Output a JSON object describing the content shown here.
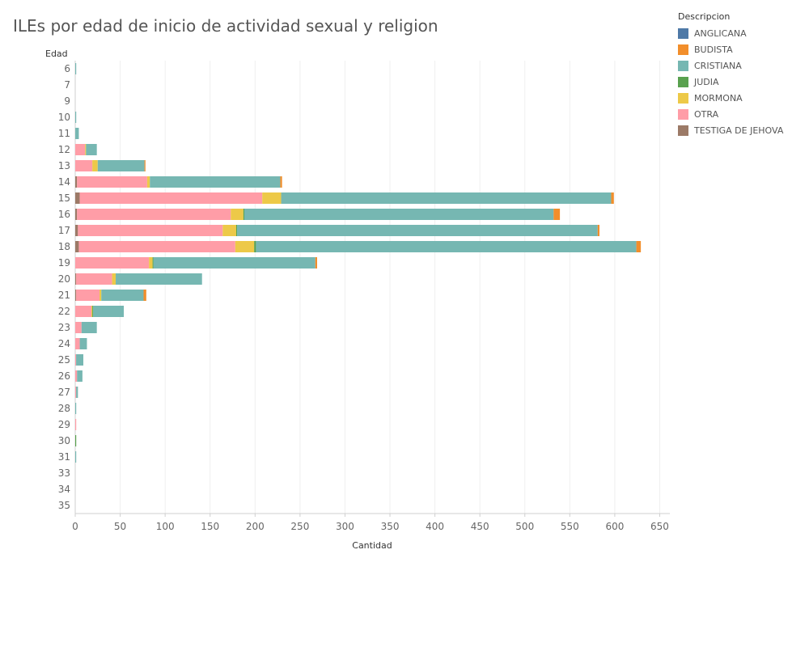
{
  "chart_data": {
    "type": "bar",
    "orientation": "horizontal",
    "stacked": true,
    "title": "ILEs por edad de inicio de actividad sexual y religion",
    "ylabel": "Edad",
    "xlabel": "Cantidad",
    "legend_title": "Descripcion",
    "legend_position": "top-right",
    "xlim": [
      0,
      660
    ],
    "x_ticks": [
      "0",
      "50",
      "100",
      "150",
      "200",
      "250",
      "300",
      "350",
      "400",
      "450",
      "500",
      "550",
      "600",
      "650"
    ],
    "grid": "vertical",
    "categories": [
      "6",
      "7",
      "9",
      "10",
      "11",
      "12",
      "13",
      "14",
      "15",
      "16",
      "17",
      "18",
      "19",
      "20",
      "21",
      "22",
      "23",
      "24",
      "25",
      "26",
      "27",
      "28",
      "29",
      "30",
      "31",
      "33",
      "34",
      "35"
    ],
    "series": [
      {
        "name": "TESTIGA DE JEHOVA",
        "color": "#9c7a67",
        "values": [
          0,
          0,
          0,
          0,
          0,
          0,
          0,
          2,
          5,
          2,
          3,
          4,
          0,
          1,
          1,
          0,
          0,
          0,
          0,
          0,
          0,
          0,
          0,
          0,
          0,
          0,
          0,
          0
        ]
      },
      {
        "name": "OTRA",
        "color": "#ff9da7",
        "values": [
          0,
          0,
          0,
          0,
          0,
          11,
          19,
          78,
          203,
          171,
          161,
          174,
          82,
          40,
          26,
          18,
          7,
          5,
          1,
          2,
          1,
          0,
          1,
          0,
          0,
          0,
          0,
          0
        ]
      },
      {
        "name": "MORMONA",
        "color": "#edc948",
        "values": [
          0,
          0,
          0,
          0,
          0,
          1,
          6,
          3,
          21,
          14,
          15,
          21,
          4,
          4,
          2,
          1,
          0,
          0,
          0,
          0,
          0,
          0,
          0,
          0,
          0,
          0,
          0,
          0
        ]
      },
      {
        "name": "JUDIA",
        "color": "#59a14f",
        "values": [
          0,
          0,
          0,
          0,
          0,
          0,
          0,
          0,
          0,
          1,
          1,
          2,
          1,
          0,
          0,
          1,
          0,
          0,
          0,
          0,
          0,
          0,
          0,
          1,
          0,
          0,
          0,
          0
        ]
      },
      {
        "name": "ANGLICANA",
        "color": "#4e79a7",
        "values": [
          0,
          0,
          0,
          0,
          0,
          0,
          0,
          0,
          0,
          0,
          0,
          0,
          0,
          0,
          0,
          0,
          0,
          0,
          0,
          0,
          0,
          0,
          0,
          0,
          0,
          0,
          0,
          0
        ]
      },
      {
        "name": "CRISTIANA",
        "color": "#76b7b2",
        "values": [
          1,
          0,
          0,
          1,
          4,
          12,
          52,
          145,
          367,
          344,
          401,
          423,
          180,
          96,
          47,
          34,
          17,
          8,
          8,
          6,
          2,
          1,
          0,
          0,
          1,
          0,
          0,
          0
        ]
      },
      {
        "name": "BUDISTA",
        "color": "#f28e2b",
        "values": [
          0,
          0,
          0,
          0,
          0,
          0,
          1,
          2,
          3,
          7,
          2,
          5,
          2,
          0,
          3,
          0,
          0,
          0,
          0,
          0,
          0,
          0,
          0,
          0,
          0,
          0,
          0,
          0
        ]
      }
    ],
    "legend": [
      {
        "label": "ANGLICANA",
        "color": "#4e79a7"
      },
      {
        "label": "BUDISTA",
        "color": "#f28e2b"
      },
      {
        "label": "CRISTIANA",
        "color": "#76b7b2"
      },
      {
        "label": "JUDIA",
        "color": "#59a14f"
      },
      {
        "label": "MORMONA",
        "color": "#edc948"
      },
      {
        "label": "OTRA",
        "color": "#ff9da7"
      },
      {
        "label": "TESTIGA DE JEHOVA",
        "color": "#9c7a67"
      }
    ]
  }
}
